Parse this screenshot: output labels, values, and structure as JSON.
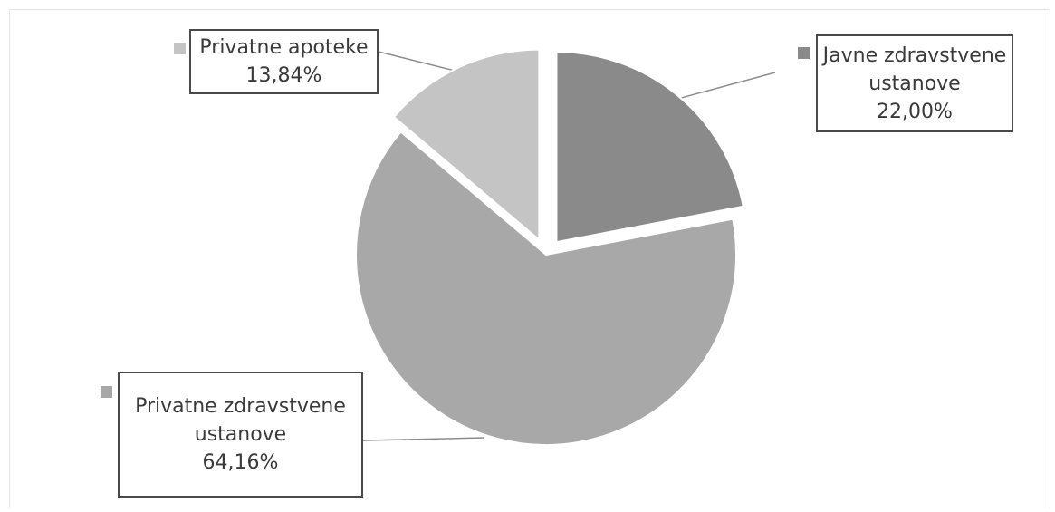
{
  "chart_data": {
    "type": "pie",
    "title": "",
    "slices": [
      {
        "name": "Javne zdravstvene ustanove",
        "label_lines": [
          "Javne zdravstvene",
          "ustanove"
        ],
        "value_label": "22,00%",
        "value": 22.0,
        "color": "#8a8a8a",
        "exploded": true
      },
      {
        "name": "Privatne zdravstvene ustanove",
        "label_lines": [
          "Privatne zdravstvene",
          "ustanove"
        ],
        "value_label": "64,16%",
        "value": 64.16,
        "color": "#a8a8a8",
        "exploded": false
      },
      {
        "name": "Privatne apoteke",
        "label_lines": [
          "Privatne apoteke"
        ],
        "value_label": "13,84%",
        "value": 13.84,
        "color": "#c4c4c4",
        "exploded": true
      }
    ],
    "legend": "none",
    "data_labels": "outside with leader lines"
  }
}
